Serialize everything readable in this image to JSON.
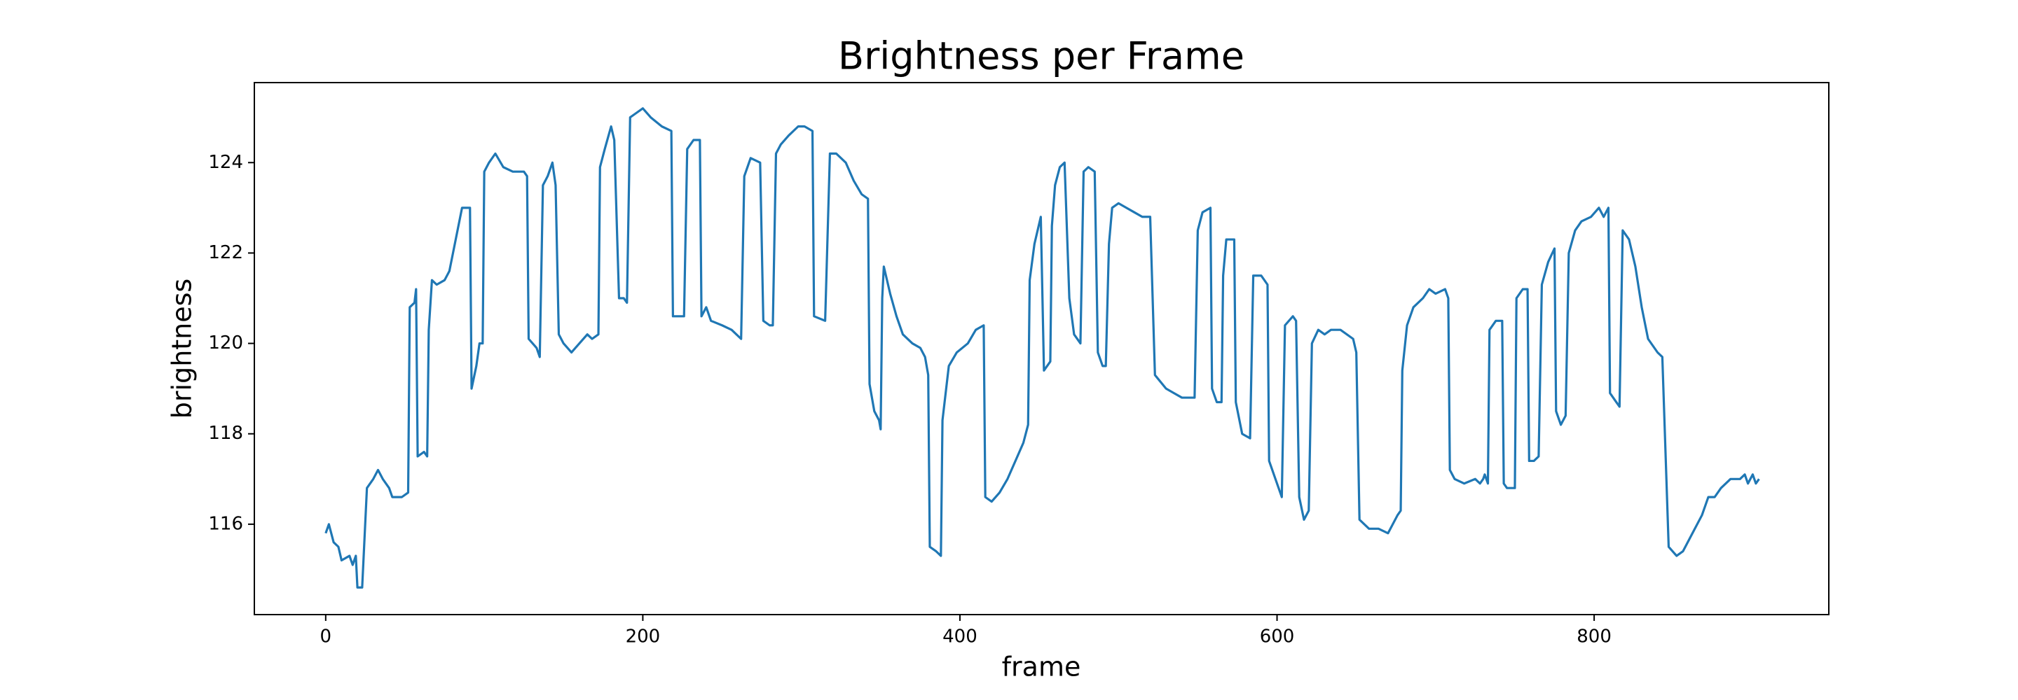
{
  "chart_data": {
    "type": "line",
    "title": "Brightness per Frame",
    "x_label": "frame",
    "y_label": "brightness",
    "x": [
      0,
      2,
      5,
      8,
      10,
      15,
      17,
      19,
      20,
      23,
      26,
      30,
      33,
      36,
      40,
      42,
      48,
      52,
      53,
      56,
      57,
      58,
      62,
      64,
      65,
      67,
      70,
      75,
      78,
      82,
      86,
      91,
      92,
      95,
      97,
      99,
      100,
      103,
      107,
      112,
      118,
      125,
      127,
      128,
      133,
      135,
      137,
      140,
      143,
      145,
      147,
      150,
      155,
      160,
      165,
      168,
      172,
      173,
      176,
      180,
      182,
      185,
      188,
      190,
      192,
      196,
      200,
      205,
      212,
      218,
      219,
      222,
      226,
      228,
      232,
      236,
      237,
      240,
      243,
      250,
      256,
      262,
      264,
      268,
      274,
      276,
      280,
      282,
      284,
      287,
      292,
      298,
      302,
      307,
      308,
      315,
      318,
      322,
      328,
      333,
      338,
      342,
      343,
      346,
      349,
      350,
      351,
      352,
      356,
      360,
      364,
      370,
      375,
      378,
      380,
      381,
      385,
      388,
      389,
      393,
      398,
      405,
      410,
      415,
      416,
      420,
      425,
      430,
      435,
      440,
      443,
      444,
      447,
      451,
      453,
      457,
      458,
      460,
      463,
      466,
      469,
      472,
      476,
      478,
      481,
      485,
      487,
      490,
      492,
      494,
      496,
      500,
      505,
      510,
      515,
      520,
      523,
      530,
      535,
      540,
      548,
      550,
      553,
      558,
      559,
      562,
      565,
      566,
      568,
      573,
      574,
      578,
      583,
      585,
      590,
      594,
      595,
      600,
      603,
      605,
      610,
      612,
      614,
      617,
      620,
      622,
      626,
      630,
      634,
      640,
      648,
      650,
      652,
      658,
      664,
      670,
      676,
      678,
      679,
      682,
      686,
      692,
      696,
      700,
      706,
      708,
      709,
      712,
      718,
      725,
      728,
      730,
      731,
      733,
      734,
      738,
      742,
      743,
      745,
      750,
      751,
      755,
      758,
      759,
      762,
      765,
      767,
      771,
      775,
      776,
      779,
      782,
      784,
      788,
      792,
      798,
      803,
      806,
      809,
      810,
      814,
      816,
      818,
      822,
      826,
      830,
      834,
      840,
      843,
      847,
      852,
      856,
      862,
      868,
      872,
      876,
      880,
      886,
      892,
      895,
      897,
      900,
      902,
      904
    ],
    "series": [
      {
        "name": "brightness",
        "color": "#1f77b4",
        "values": [
          115.8,
          116.0,
          115.6,
          115.5,
          115.2,
          115.3,
          115.1,
          115.3,
          114.6,
          114.6,
          116.8,
          117.0,
          117.2,
          117.0,
          116.8,
          116.6,
          116.6,
          116.7,
          120.8,
          120.9,
          121.2,
          117.5,
          117.6,
          117.5,
          120.3,
          121.4,
          121.3,
          121.4,
          121.6,
          122.3,
          123.0,
          123.0,
          119.0,
          119.5,
          120.0,
          120.0,
          123.8,
          124.0,
          124.2,
          123.9,
          123.8,
          123.8,
          123.7,
          120.1,
          119.9,
          119.7,
          123.5,
          123.7,
          124.0,
          123.5,
          120.2,
          120.0,
          119.8,
          120.0,
          120.2,
          120.1,
          120.2,
          123.9,
          124.3,
          124.8,
          124.5,
          121.0,
          121.0,
          120.9,
          125.0,
          125.1,
          125.2,
          125.0,
          124.8,
          124.7,
          120.6,
          120.6,
          120.6,
          124.3,
          124.5,
          124.5,
          120.6,
          120.8,
          120.5,
          120.4,
          120.3,
          120.1,
          123.7,
          124.1,
          124.0,
          120.5,
          120.4,
          120.4,
          124.2,
          124.4,
          124.6,
          124.8,
          124.8,
          124.7,
          120.6,
          120.5,
          124.2,
          124.2,
          124.0,
          123.6,
          123.3,
          123.2,
          119.1,
          118.5,
          118.3,
          118.1,
          121.0,
          121.7,
          121.1,
          120.6,
          120.2,
          120.0,
          119.9,
          119.7,
          119.3,
          115.5,
          115.4,
          115.3,
          118.3,
          119.5,
          119.8,
          120.0,
          120.3,
          120.4,
          116.6,
          116.5,
          116.7,
          117.0,
          117.4,
          117.8,
          118.2,
          121.4,
          122.2,
          122.8,
          119.4,
          119.6,
          122.6,
          123.5,
          123.9,
          124.0,
          121.0,
          120.2,
          120.0,
          123.8,
          123.9,
          123.8,
          119.8,
          119.5,
          119.5,
          122.2,
          123.0,
          123.1,
          123.0,
          122.9,
          122.8,
          122.8,
          119.3,
          119.0,
          118.9,
          118.8,
          118.8,
          122.5,
          122.9,
          123.0,
          119.0,
          118.7,
          118.7,
          121.5,
          122.3,
          122.3,
          118.7,
          118.0,
          117.9,
          121.5,
          121.5,
          121.3,
          117.4,
          116.9,
          116.6,
          120.4,
          120.6,
          120.5,
          116.6,
          116.1,
          116.3,
          120.0,
          120.3,
          120.2,
          120.3,
          120.3,
          120.1,
          119.8,
          116.1,
          115.9,
          115.9,
          115.8,
          116.2,
          116.3,
          119.4,
          120.4,
          120.8,
          121.0,
          121.2,
          121.1,
          121.2,
          121.0,
          117.2,
          117.0,
          116.9,
          117.0,
          116.9,
          117.0,
          117.1,
          116.9,
          120.3,
          120.5,
          120.5,
          116.9,
          116.8,
          116.8,
          121.0,
          121.2,
          121.2,
          117.4,
          117.4,
          117.5,
          121.3,
          121.8,
          122.1,
          118.5,
          118.2,
          118.4,
          122.0,
          122.5,
          122.7,
          122.8,
          123.0,
          122.8,
          123.0,
          118.9,
          118.7,
          118.6,
          122.5,
          122.3,
          121.7,
          120.8,
          120.1,
          119.8,
          119.7,
          115.5,
          115.3,
          115.4,
          115.8,
          116.2,
          116.6,
          116.6,
          116.8,
          117.0,
          117.0,
          117.1,
          116.9,
          117.1,
          116.9,
          117.0
        ]
      }
    ],
    "xlim": [
      -45,
      948
    ],
    "ylim": [
      114.0,
      125.77
    ],
    "xticks": [
      0,
      200,
      400,
      600,
      800
    ],
    "yticks": [
      116,
      118,
      120,
      122,
      124
    ],
    "grid": false
  }
}
